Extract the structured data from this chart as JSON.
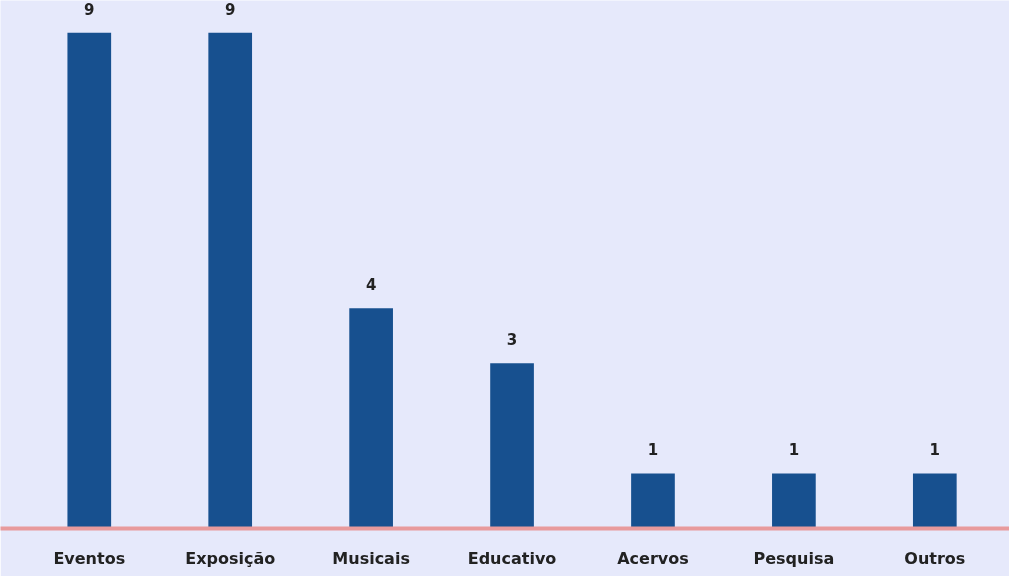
{
  "chart_data": {
    "type": "bar",
    "categories": [
      "Eventos",
      "Exposição",
      "Musicais",
      "Educativo",
      "Acervos",
      "Pesquisa",
      "Outros"
    ],
    "values": [
      9,
      9,
      4,
      3,
      1,
      1,
      1
    ],
    "color": "#17508f",
    "data_labels": true
  }
}
